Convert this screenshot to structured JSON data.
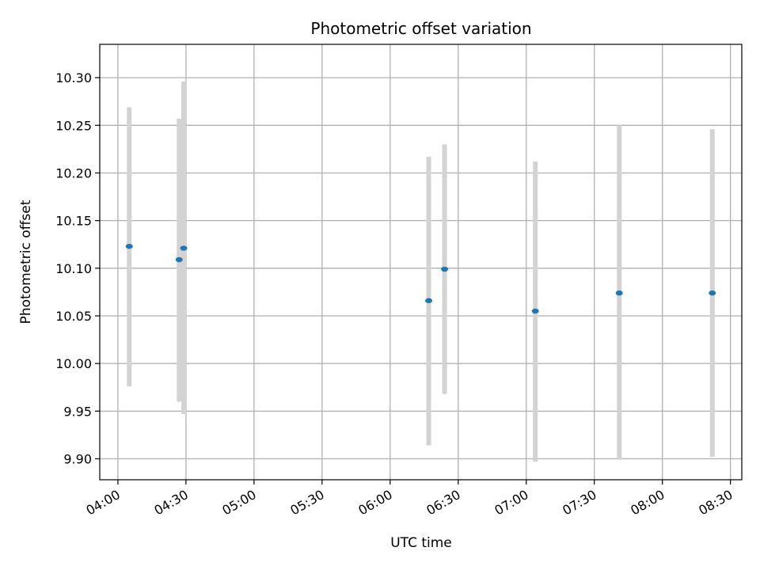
{
  "chart_data": {
    "type": "scatter",
    "title": "Photometric offset variation",
    "xlabel": "UTC time",
    "ylabel": "Photometric offset",
    "x_axis_type": "time",
    "xlim": [
      "03:52",
      "08:35"
    ],
    "ylim": [
      9.878,
      10.335
    ],
    "xticks": [
      "04:00",
      "04:30",
      "05:00",
      "05:30",
      "06:00",
      "06:30",
      "07:00",
      "07:30",
      "08:00",
      "08:30"
    ],
    "yticks": [
      9.9,
      9.95,
      10.0,
      10.05,
      10.1,
      10.15,
      10.2,
      10.25,
      10.3
    ],
    "ytick_labels": [
      "9.90",
      "9.95",
      "10.00",
      "10.05",
      "10.10",
      "10.15",
      "10.20",
      "10.25",
      "10.30"
    ],
    "grid": true,
    "colors": {
      "point": "#1f77b4",
      "errorbar": "#d3d3d3",
      "grid": "#b0b0b0"
    },
    "points": [
      {
        "x": "04:05",
        "y": 10.123,
        "ymin": 9.976,
        "ymax": 10.269
      },
      {
        "x": "04:27",
        "y": 10.109,
        "ymin": 9.96,
        "ymax": 10.257
      },
      {
        "x": "04:29",
        "y": 10.121,
        "ymin": 9.947,
        "ymax": 10.296
      },
      {
        "x": "06:17",
        "y": 10.066,
        "ymin": 9.914,
        "ymax": 10.217
      },
      {
        "x": "06:24",
        "y": 10.099,
        "ymin": 9.968,
        "ymax": 10.23
      },
      {
        "x": "07:04",
        "y": 10.055,
        "ymin": 9.897,
        "ymax": 10.212
      },
      {
        "x": "07:41",
        "y": 10.074,
        "ymin": 9.899,
        "ymax": 10.25
      },
      {
        "x": "08:22",
        "y": 10.074,
        "ymin": 9.902,
        "ymax": 10.246
      }
    ]
  }
}
